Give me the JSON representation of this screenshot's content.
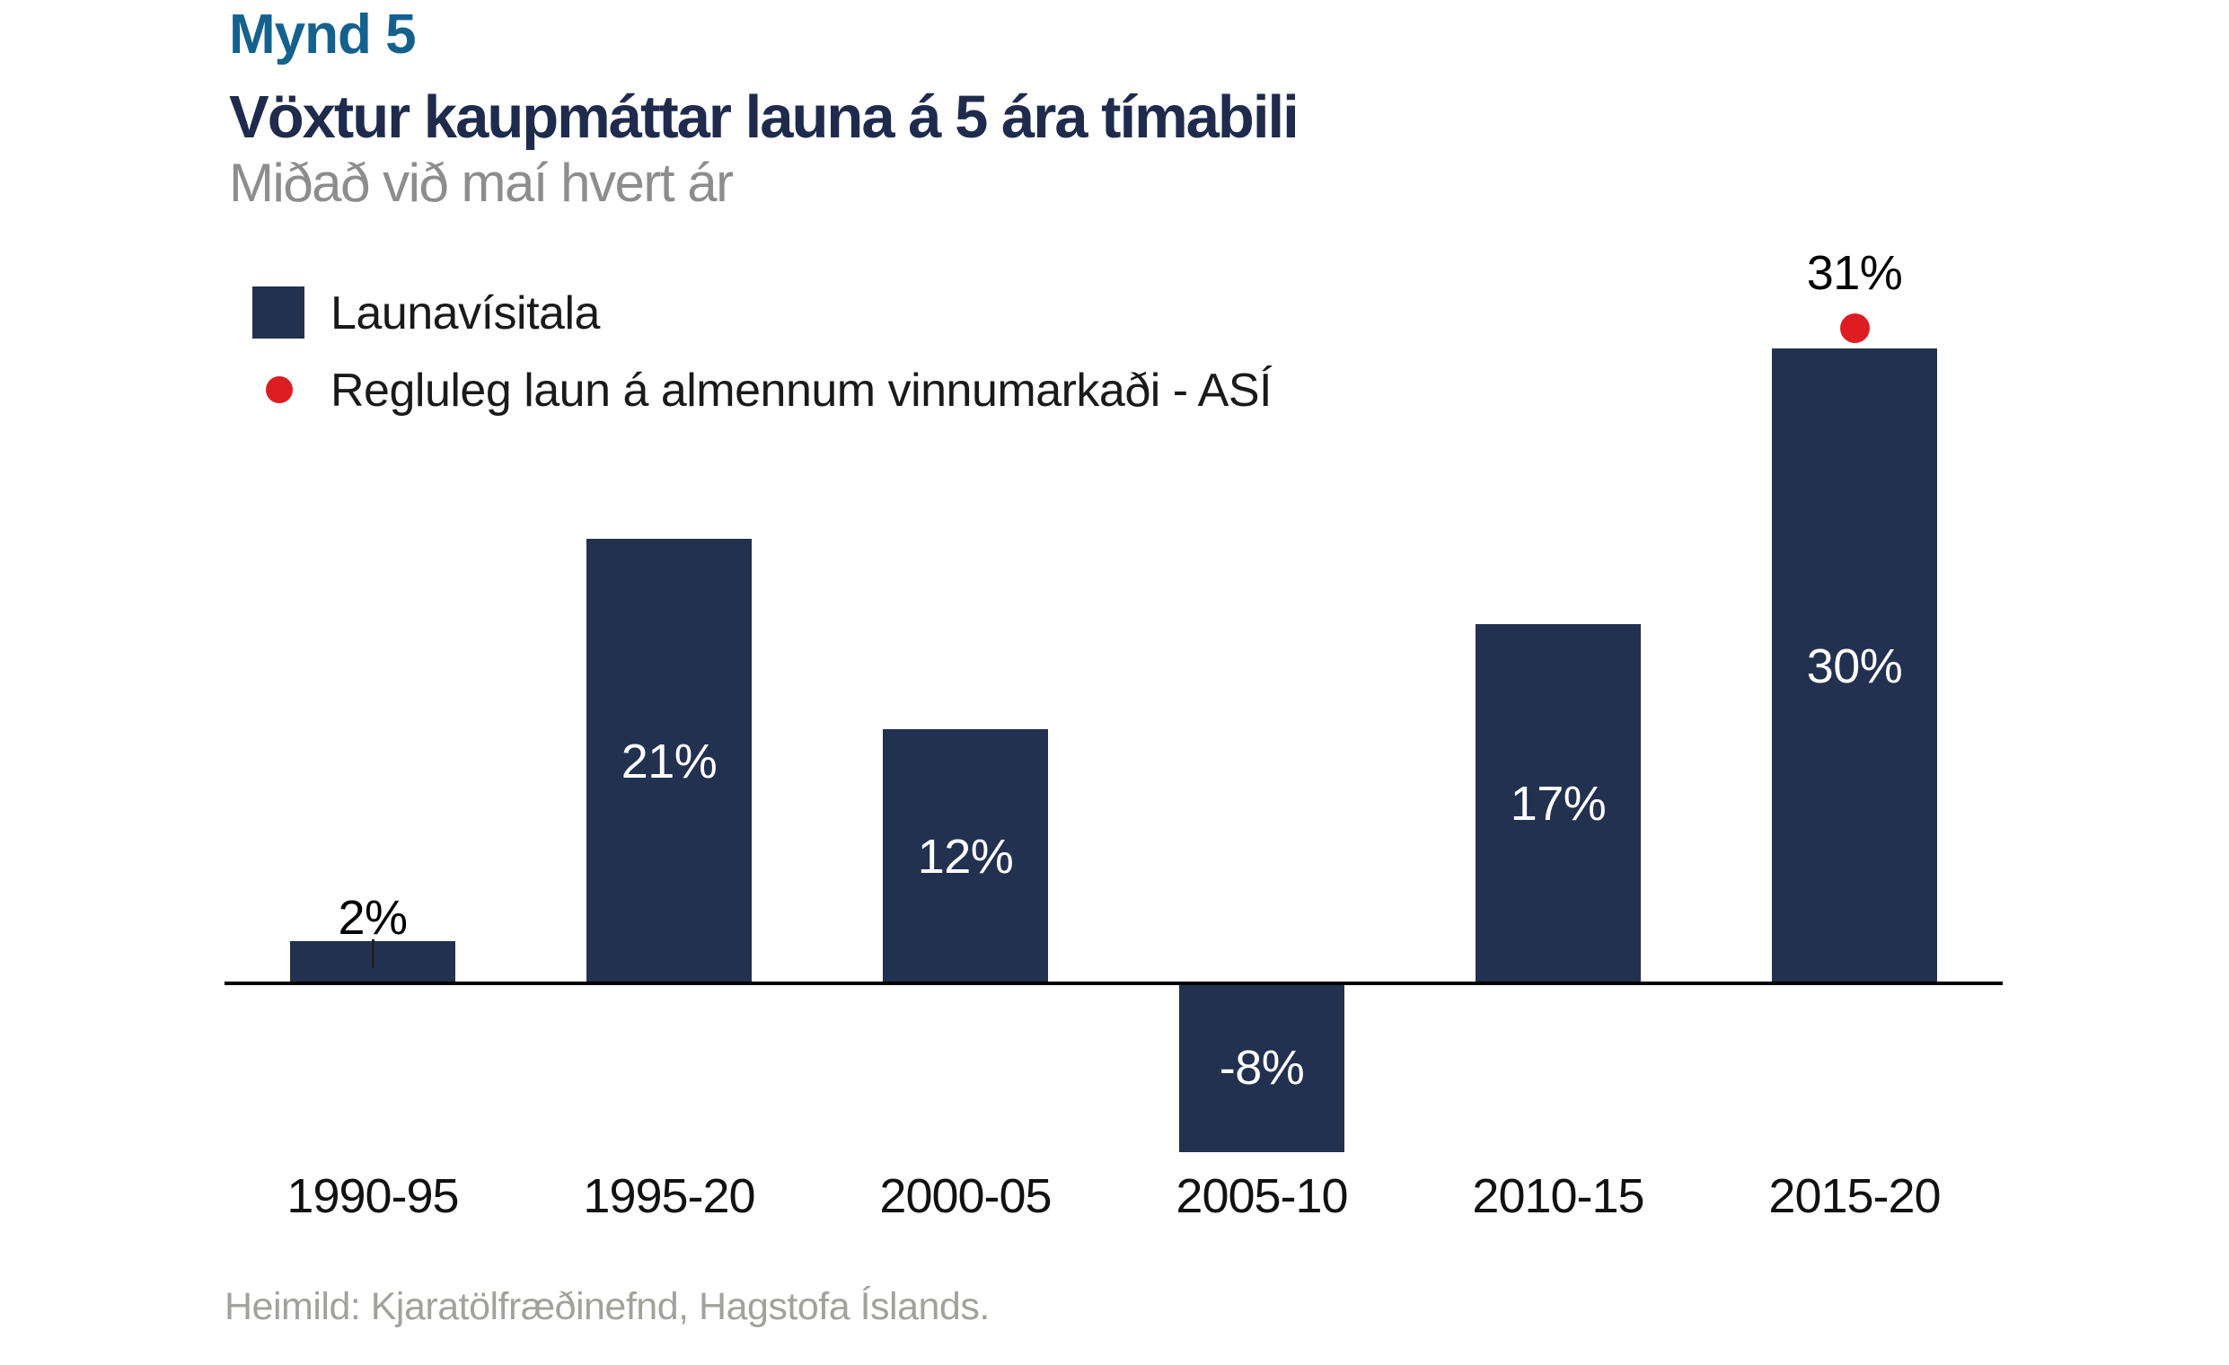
{
  "figure_label": "Mynd 5",
  "title": "Vöxtur kaupmáttar launa á 5 ára tímabili",
  "subtitle": "Miðað við maí hvert ár",
  "source": "Heimild: Kjaratölfræðinefnd, Hagstofa Íslands.",
  "colors": {
    "bar": "#233150",
    "point": "#dd1d21",
    "figure_label": "#15618e",
    "title": "#1f2b4d",
    "subtitle": "#8d8d8d",
    "source": "#a2a29c",
    "axis": "#000000"
  },
  "legend": {
    "items": [
      {
        "label": "Launavísitala",
        "marker": "square",
        "color": "#233150"
      },
      {
        "label": "Regluleg laun á almennum vinnumarkaði - ASÍ",
        "marker": "dot",
        "color": "#dd1d21"
      }
    ]
  },
  "chart_data": {
    "type": "bar",
    "categories": [
      "1990-95",
      "1995-20",
      "2000-05",
      "2005-10",
      "2010-15",
      "2015-20"
    ],
    "series": [
      {
        "name": "Launavísitala",
        "type": "bar",
        "values": [
          2,
          21,
          12,
          -8,
          17,
          30
        ]
      },
      {
        "name": "Regluleg laun á almennum vinnumarkaði - ASÍ",
        "type": "point",
        "values": [
          null,
          null,
          null,
          null,
          null,
          31
        ]
      }
    ],
    "bar_labels": [
      "2%",
      "21%",
      "12%",
      "-8%",
      "17%",
      "30%"
    ],
    "point_label": "31%",
    "unit": "%",
    "title": "Vöxtur kaupmáttar launa á 5 ára tímabili",
    "subtitle": "Miðað við maí hvert ár",
    "xlabel": "",
    "ylabel": "",
    "ylim": [
      -10,
      33
    ],
    "gridlines": false,
    "y_axis_visible": false,
    "legend_position": "top-left",
    "label_placement": [
      "outside",
      "inside",
      "inside",
      "inside",
      "inside",
      "inside"
    ]
  }
}
